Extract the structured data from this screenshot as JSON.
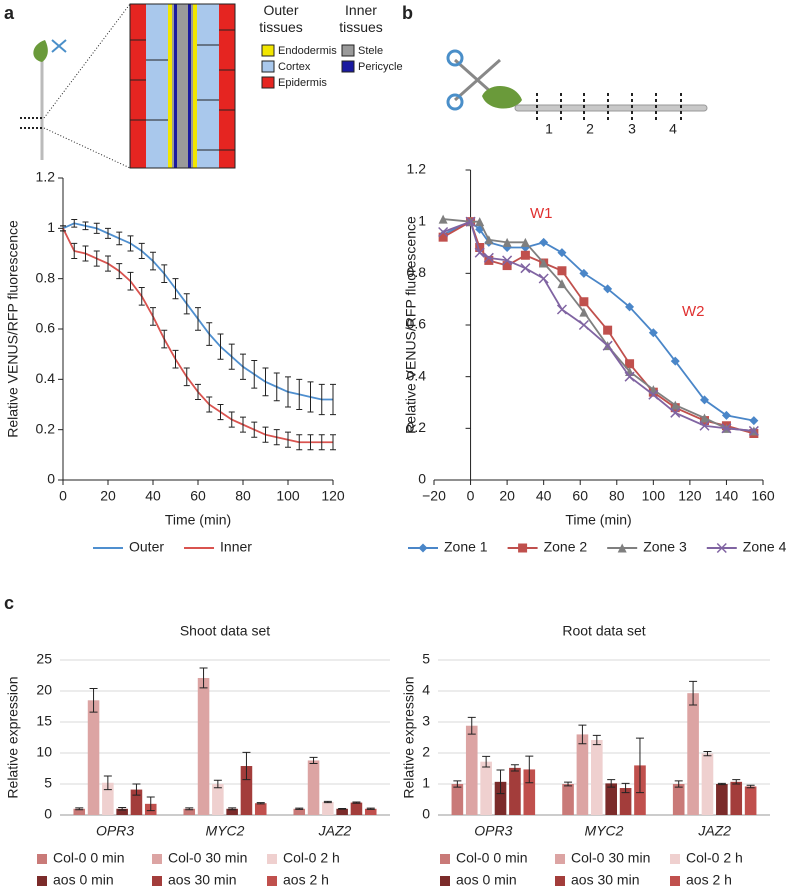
{
  "panel_labels": [
    "a",
    "b",
    "c"
  ],
  "diagram_a": {
    "outer_heading": "Outer tissues",
    "inner_heading": "Inner tissues",
    "outer": [
      "Endodermis",
      "Cortex",
      "Epidermis"
    ],
    "inner": [
      "Stele",
      "Pericycle"
    ]
  },
  "diagram_b": {
    "zones": [
      "1",
      "2",
      "3",
      "4"
    ]
  },
  "chart_data": [
    {
      "type": "line",
      "x_label": "Time (min)",
      "y_label": "Relative VENUS/RFP fluorescence",
      "x": [
        0,
        5,
        10,
        15,
        20,
        25,
        30,
        35,
        40,
        45,
        50,
        55,
        60,
        65,
        70,
        75,
        80,
        85,
        90,
        95,
        100,
        105,
        110,
        115,
        120
      ],
      "xlim": [
        0,
        120
      ],
      "xticks": [
        0,
        20,
        40,
        60,
        80,
        100,
        120
      ],
      "ylim": [
        0,
        1.2
      ],
      "yticks": [
        0,
        0.2,
        0.4,
        0.6,
        0.8,
        1,
        1.2
      ],
      "series": [
        {
          "name": "Outer",
          "color": "#4f8fcf",
          "values": [
            1.0,
            1.02,
            1.01,
            1.0,
            0.98,
            0.96,
            0.94,
            0.91,
            0.87,
            0.82,
            0.76,
            0.7,
            0.64,
            0.58,
            0.53,
            0.49,
            0.45,
            0.42,
            0.39,
            0.37,
            0.35,
            0.34,
            0.33,
            0.32,
            0.32
          ],
          "errors": [
            0.01,
            0.015,
            0.015,
            0.02,
            0.02,
            0.025,
            0.03,
            0.03,
            0.035,
            0.035,
            0.04,
            0.04,
            0.045,
            0.045,
            0.05,
            0.05,
            0.05,
            0.055,
            0.055,
            0.055,
            0.06,
            0.06,
            0.06,
            0.06,
            0.06
          ]
        },
        {
          "name": "Inner",
          "color": "#d9534f",
          "values": [
            1.0,
            0.91,
            0.9,
            0.88,
            0.86,
            0.83,
            0.79,
            0.73,
            0.65,
            0.56,
            0.48,
            0.41,
            0.35,
            0.3,
            0.27,
            0.24,
            0.22,
            0.2,
            0.18,
            0.17,
            0.16,
            0.15,
            0.15,
            0.15,
            0.15
          ],
          "errors": [
            0.01,
            0.03,
            0.03,
            0.03,
            0.03,
            0.03,
            0.035,
            0.035,
            0.035,
            0.035,
            0.035,
            0.035,
            0.03,
            0.03,
            0.03,
            0.03,
            0.03,
            0.03,
            0.03,
            0.03,
            0.03,
            0.03,
            0.03,
            0.03,
            0.03
          ]
        }
      ]
    },
    {
      "type": "line",
      "x_label": "Time (min)",
      "y_label": "Relative VENUS/RFP fluorescence",
      "x": [
        -15,
        0,
        5,
        10,
        20,
        30,
        40,
        50,
        62,
        75,
        87,
        100,
        112,
        128,
        140,
        155
      ],
      "xlim": [
        -20,
        160
      ],
      "xticks": [
        {
          "value": -20,
          "label": "−20"
        },
        0,
        20,
        40,
        60,
        80,
        100,
        120,
        140,
        160
      ],
      "ylim": [
        0,
        1.2
      ],
      "yticks": [
        0,
        0.2,
        0.4,
        0.6,
        0.8,
        1,
        1.2
      ],
      "annotations": [
        "W1",
        "W2"
      ],
      "annotation_color": "#e03030",
      "series": [
        {
          "name": "Zone 1",
          "color": "#4a86c8",
          "marker": "diamond",
          "values": [
            0.95,
            1.0,
            0.97,
            0.92,
            0.9,
            0.9,
            0.92,
            0.88,
            0.8,
            0.74,
            0.67,
            0.57,
            0.46,
            0.31,
            0.25,
            0.23
          ]
        },
        {
          "name": "Zone 2",
          "color": "#c0504d",
          "marker": "square",
          "values": [
            0.94,
            1.0,
            0.9,
            0.85,
            0.83,
            0.87,
            0.84,
            0.81,
            0.69,
            0.58,
            0.45,
            0.34,
            0.28,
            0.23,
            0.21,
            0.18
          ]
        },
        {
          "name": "Zone 3",
          "color": "#7f7f7f",
          "marker": "triangle",
          "values": [
            1.01,
            1.0,
            1.0,
            0.93,
            0.92,
            0.92,
            0.84,
            0.76,
            0.65,
            0.52,
            0.42,
            0.35,
            0.29,
            0.24,
            0.2,
            0.19
          ]
        },
        {
          "name": "Zone 4",
          "color": "#8064a2",
          "marker": "x",
          "values": [
            0.96,
            1.0,
            0.88,
            0.86,
            0.85,
            0.82,
            0.78,
            0.66,
            0.6,
            0.52,
            0.4,
            0.33,
            0.26,
            0.21,
            0.2,
            0.19
          ]
        }
      ]
    },
    {
      "type": "bar",
      "title": "Shoot data set",
      "y_label": "Relative expression",
      "grid": true,
      "categories": [
        "OPR3",
        "MYC2",
        "JAZ2"
      ],
      "ylim": [
        0,
        25
      ],
      "yticks": [
        0,
        5,
        10,
        15,
        20,
        25
      ],
      "series": [
        {
          "name": "Col-0 0 min",
          "color": "#c97a78",
          "values": [
            1,
            1,
            1
          ],
          "errors": [
            0.15,
            0.15,
            0.1
          ]
        },
        {
          "name": "Col-0 30 min",
          "color": "#dca4a3",
          "values": [
            18.5,
            22.1,
            8.8
          ],
          "errors": [
            1.9,
            1.6,
            0.5
          ]
        },
        {
          "name": "Col-0 2 h",
          "color": "#efd0cf",
          "values": [
            5.2,
            5,
            2.1
          ],
          "errors": [
            1.1,
            0.6,
            0.1
          ]
        },
        {
          "name": "aos 0 min",
          "color": "#7b2b2a",
          "values": [
            1,
            1,
            1
          ],
          "errors": [
            0.2,
            0.15,
            0.05
          ]
        },
        {
          "name": "aos 30 min",
          "color": "#a33d3b",
          "values": [
            4.1,
            7.9,
            2
          ],
          "errors": [
            0.9,
            2.2,
            0.1
          ]
        },
        {
          "name": "aos 2 h",
          "color": "#c0504d",
          "values": [
            1.8,
            1.9,
            1
          ],
          "errors": [
            1.1,
            0.1,
            0.1
          ]
        }
      ]
    },
    {
      "type": "bar",
      "title": "Root data set",
      "y_label": "Relative expression",
      "grid": true,
      "categories": [
        "OPR3",
        "MYC2",
        "JAZ2"
      ],
      "ylim": [
        0,
        5
      ],
      "yticks": [
        0,
        1,
        2,
        3,
        4,
        5
      ],
      "series": [
        {
          "name": "Col-0 0 min",
          "color": "#c97a78",
          "values": [
            1,
            1,
            1
          ],
          "errors": [
            0.1,
            0.06,
            0.1
          ]
        },
        {
          "name": "Col-0 30 min",
          "color": "#dca4a3",
          "values": [
            2.88,
            2.6,
            3.93
          ],
          "errors": [
            0.27,
            0.3,
            0.38
          ]
        },
        {
          "name": "Col-0 2 h",
          "color": "#efd0cf",
          "values": [
            1.72,
            2.42,
            1.98
          ],
          "errors": [
            0.17,
            0.15,
            0.07
          ]
        },
        {
          "name": "aos 0 min",
          "color": "#7b2b2a",
          "values": [
            1.07,
            1.02,
            1
          ],
          "errors": [
            0.38,
            0.12,
            0.02
          ]
        },
        {
          "name": "aos 30 min",
          "color": "#a33d3b",
          "values": [
            1.52,
            0.87,
            1.07
          ],
          "errors": [
            0.1,
            0.15,
            0.07
          ]
        },
        {
          "name": "aos 2 h",
          "color": "#c0504d",
          "values": [
            1.47,
            1.6,
            0.92
          ],
          "errors": [
            0.43,
            0.88,
            0.04
          ]
        }
      ]
    }
  ]
}
